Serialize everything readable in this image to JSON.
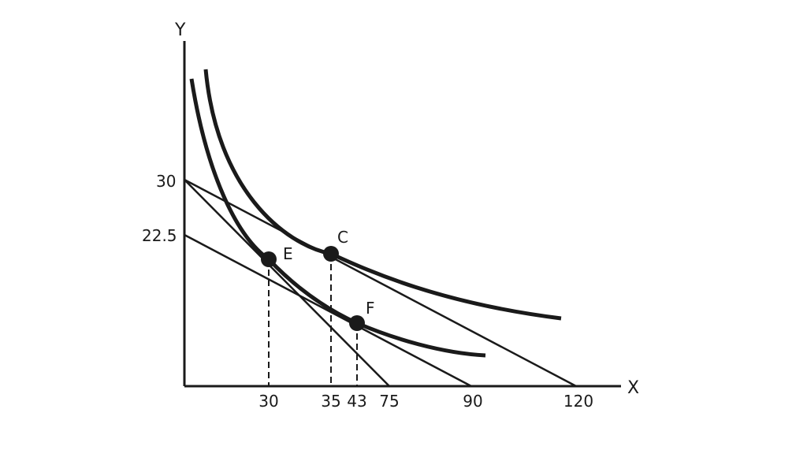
{
  "axes": {
    "x_label": "X",
    "y_label": "Y"
  },
  "y_ticks": [
    "30",
    "22.5"
  ],
  "x_ticks": [
    "30",
    "35",
    "43",
    "75",
    "90",
    "120"
  ],
  "points": {
    "E": "E",
    "C": "C",
    "F": "F"
  },
  "colors": {
    "ink": "#1a1a1a",
    "background": "#ffffff"
  }
}
